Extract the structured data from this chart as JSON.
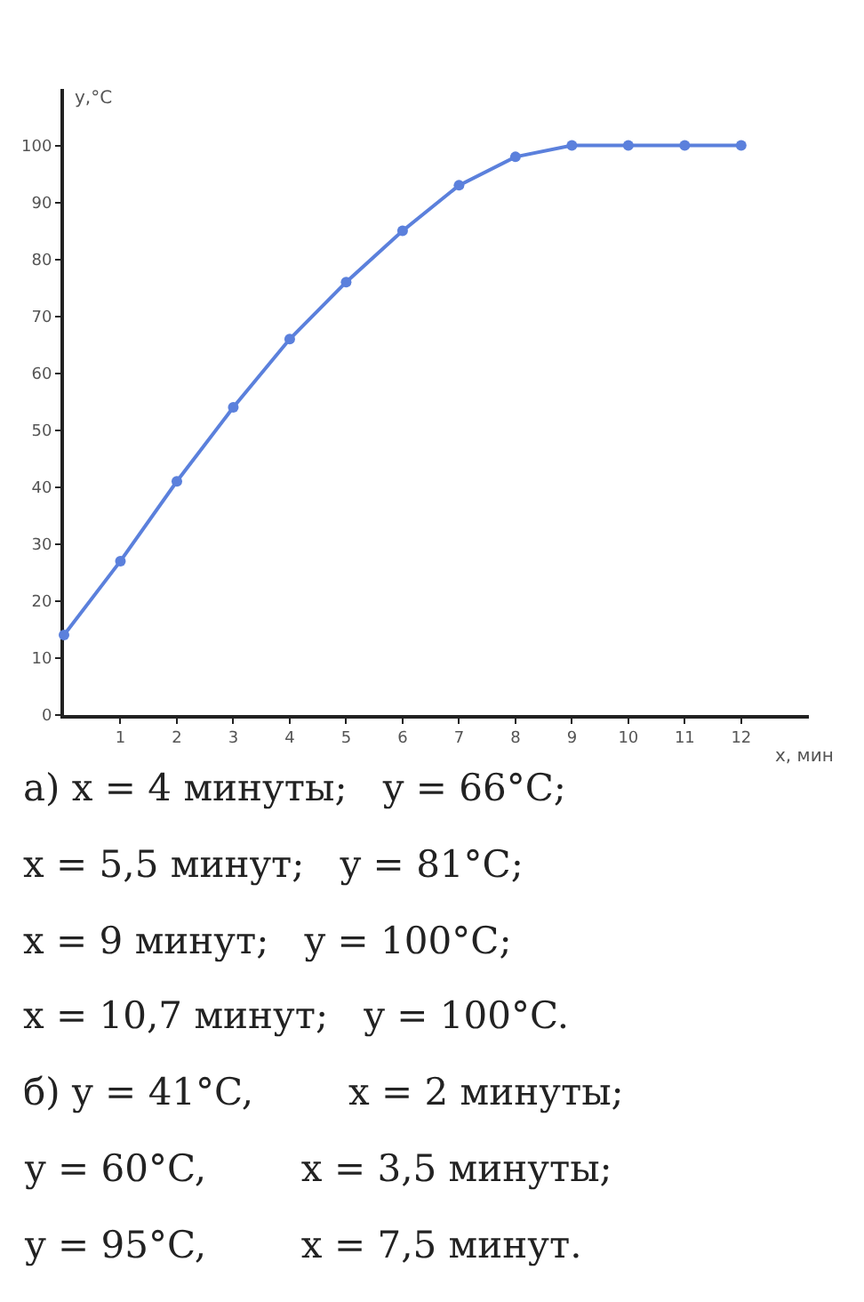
{
  "chart_data": {
    "type": "line",
    "xlabel": "x, мин",
    "ylabel": "y,°C",
    "x": [
      0,
      1,
      2,
      3,
      4,
      5,
      6,
      7,
      8,
      9,
      10,
      11,
      12
    ],
    "series": [
      {
        "color": "#5b80dc",
        "values": [
          14,
          27,
          41,
          54,
          66,
          76,
          85,
          93,
          98,
          100,
          100,
          100,
          100
        ]
      }
    ],
    "xlim": [
      0,
      13.2
    ],
    "xticks": [
      1,
      2,
      3,
      4,
      5,
      6,
      7,
      8,
      9,
      10,
      11,
      12
    ],
    "ylim": [
      0,
      110
    ],
    "yticks": [
      0,
      10,
      20,
      30,
      40,
      50,
      60,
      70,
      80,
      90,
      100
    ],
    "grid": false,
    "marker": "circle",
    "line_style": "solid",
    "annotations": [
      "а) x = 4 минуты;   y = 66°C;",
      "x = 5,5 минут;   y = 81°C;",
      "x = 9 минут;   y = 100°C;",
      "x = 10,7 минут;   y = 100°C.",
      "б) y = 41°C,        x = 2 минуты;",
      "y = 60°C,        x = 3,5 минуты;",
      "y = 95°C,        x = 7,5 минут."
    ]
  }
}
